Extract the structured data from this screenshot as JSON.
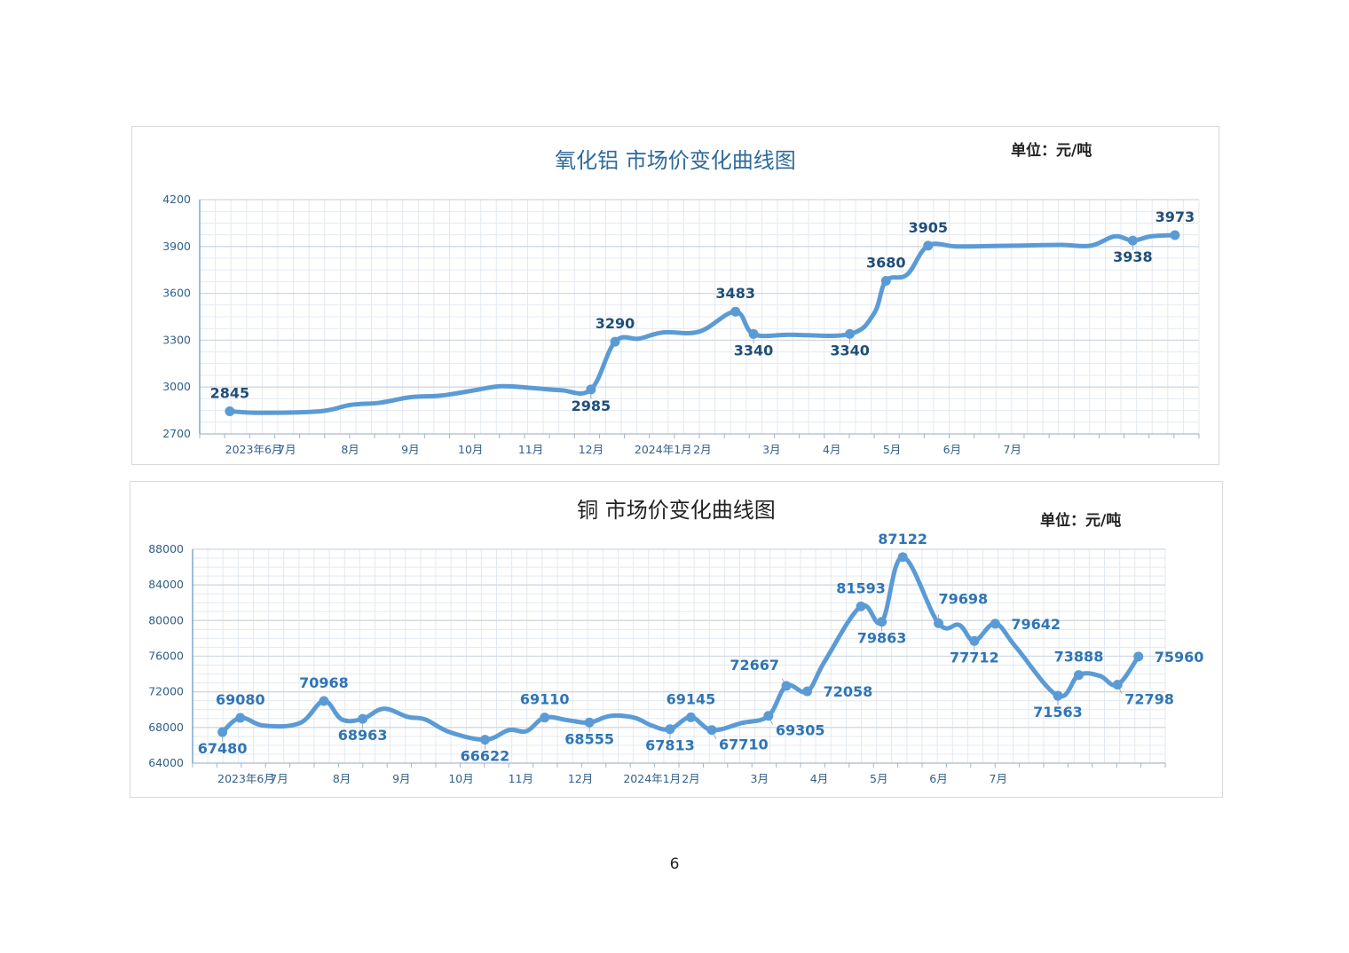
{
  "charts": [
    {
      "title": "氧化铝 市场价变化曲线图",
      "unit": "单位：元/吨",
      "colors": {
        "line": "#5b9bd5",
        "label": "#1f4e79",
        "axis": "#3a7bb8",
        "grid": "#e3e9f0"
      }
    },
    {
      "title": "铜 市场价变化曲线图",
      "unit": "单位：元/吨",
      "colors": {
        "line": "#5b9bd5",
        "label": "#2f75b5",
        "axis": "#3a7bb8",
        "grid": "#e3e9f0"
      }
    }
  ],
  "page_number": "6",
  "chart_data": [
    {
      "type": "line",
      "title": "氧化铝 市场价变化曲线图",
      "unit": "单位：元/吨",
      "ylim": [
        2700,
        4200
      ],
      "yticks": [
        "2700",
        "3000",
        "3300",
        "3600",
        "3900",
        "4200"
      ],
      "xticks": [
        {
          "x": 0.9,
          "label": "2023年6月"
        },
        {
          "x": 1.45,
          "label": "7月"
        },
        {
          "x": 2.5,
          "label": "8月"
        },
        {
          "x": 3.5,
          "label": "9月"
        },
        {
          "x": 4.5,
          "label": "10月"
        },
        {
          "x": 5.5,
          "label": "11月"
        },
        {
          "x": 6.5,
          "label": "12月"
        },
        {
          "x": 7.7,
          "label": "2024年1月"
        },
        {
          "x": 8.35,
          "label": "2月"
        },
        {
          "x": 9.5,
          "label": "3月"
        },
        {
          "x": 10.5,
          "label": "4月"
        },
        {
          "x": 11.5,
          "label": "5月"
        },
        {
          "x": 12.5,
          "label": "6月"
        },
        {
          "x": 13.5,
          "label": "7月"
        }
      ],
      "xrange": [
        0,
        16.6
      ],
      "grid": true,
      "series": [
        {
          "points": [
            [
              0.5,
              2845
            ],
            [
              1.0,
              2835
            ],
            [
              2.0,
              2845
            ],
            [
              2.5,
              2885
            ],
            [
              3.0,
              2900
            ],
            [
              3.5,
              2935
            ],
            [
              4.0,
              2945
            ],
            [
              4.5,
              2975
            ],
            [
              5.0,
              3005
            ],
            [
              5.5,
              2995
            ],
            [
              6.0,
              2980
            ],
            [
              6.5,
              2985
            ],
            [
              6.9,
              3290
            ],
            [
              7.3,
              3310
            ],
            [
              7.7,
              3350
            ],
            [
              8.3,
              3355
            ],
            [
              8.9,
              3483
            ],
            [
              9.2,
              3340
            ],
            [
              9.8,
              3335
            ],
            [
              10.8,
              3340
            ],
            [
              11.2,
              3470
            ],
            [
              11.4,
              3680
            ],
            [
              11.75,
              3720
            ],
            [
              12.1,
              3905
            ],
            [
              12.6,
              3900
            ],
            [
              13.5,
              3905
            ],
            [
              14.3,
              3910
            ],
            [
              14.8,
              3905
            ],
            [
              15.2,
              3965
            ],
            [
              15.5,
              3938
            ],
            [
              15.8,
              3965
            ],
            [
              16.2,
              3973
            ]
          ]
        }
      ],
      "data_labels": [
        {
          "x": 0.5,
          "y": 2845,
          "text": "2845",
          "pos": "above"
        },
        {
          "x": 6.5,
          "y": 2985,
          "text": "2985",
          "pos": "below"
        },
        {
          "x": 6.9,
          "y": 3290,
          "text": "3290",
          "pos": "above"
        },
        {
          "x": 8.9,
          "y": 3483,
          "text": "3483",
          "pos": "above"
        },
        {
          "x": 9.2,
          "y": 3340,
          "text": "3340",
          "pos": "below"
        },
        {
          "x": 10.8,
          "y": 3340,
          "text": "3340",
          "pos": "below"
        },
        {
          "x": 11.4,
          "y": 3680,
          "text": "3680",
          "pos": "above"
        },
        {
          "x": 12.1,
          "y": 3905,
          "text": "3905",
          "pos": "above"
        },
        {
          "x": 15.5,
          "y": 3938,
          "text": "3938",
          "pos": "below"
        },
        {
          "x": 16.2,
          "y": 3973,
          "text": "3973",
          "pos": "above"
        }
      ]
    },
    {
      "type": "line",
      "title": "铜 市场价变化曲线图",
      "unit": "单位：元/吨",
      "ylim": [
        64000,
        88000
      ],
      "yticks": [
        "64000",
        "68000",
        "72000",
        "76000",
        "80000",
        "84000",
        "88000"
      ],
      "xticks": [
        {
          "x": 0.9,
          "label": "2023年6月"
        },
        {
          "x": 1.45,
          "label": "7月"
        },
        {
          "x": 2.5,
          "label": "8月"
        },
        {
          "x": 3.5,
          "label": "9月"
        },
        {
          "x": 4.5,
          "label": "10月"
        },
        {
          "x": 5.5,
          "label": "11月"
        },
        {
          "x": 6.5,
          "label": "12月"
        },
        {
          "x": 7.7,
          "label": "2024年1月"
        },
        {
          "x": 8.35,
          "label": "2月"
        },
        {
          "x": 9.5,
          "label": "3月"
        },
        {
          "x": 10.5,
          "label": "4月"
        },
        {
          "x": 11.5,
          "label": "5月"
        },
        {
          "x": 12.5,
          "label": "6月"
        },
        {
          "x": 13.5,
          "label": "7月"
        }
      ],
      "xrange": [
        0,
        16.3
      ],
      "grid": true,
      "series": [
        {
          "points": [
            [
              0.5,
              67480
            ],
            [
              0.8,
              69080
            ],
            [
              1.2,
              68200
            ],
            [
              1.8,
              68500
            ],
            [
              2.2,
              70968
            ],
            [
              2.5,
              68900
            ],
            [
              2.85,
              68963
            ],
            [
              3.2,
              70100
            ],
            [
              3.6,
              69200
            ],
            [
              3.9,
              68900
            ],
            [
              4.3,
              67500
            ],
            [
              4.9,
              66622
            ],
            [
              5.3,
              67700
            ],
            [
              5.6,
              67600
            ],
            [
              5.9,
              69110
            ],
            [
              6.3,
              68800
            ],
            [
              6.65,
              68555
            ],
            [
              7.0,
              69300
            ],
            [
              7.4,
              69100
            ],
            [
              7.7,
              68200
            ],
            [
              8.0,
              67813
            ],
            [
              8.35,
              69145
            ],
            [
              8.7,
              67710
            ],
            [
              9.2,
              68500
            ],
            [
              9.65,
              69305
            ],
            [
              9.95,
              72667
            ],
            [
              10.3,
              72058
            ],
            [
              10.6,
              75500
            ],
            [
              11.2,
              81593
            ],
            [
              11.55,
              79863
            ],
            [
              11.9,
              87122
            ],
            [
              12.5,
              79698
            ],
            [
              12.85,
              79500
            ],
            [
              13.1,
              77712
            ],
            [
              13.45,
              79642
            ],
            [
              13.8,
              77000
            ],
            [
              14.5,
              71563
            ],
            [
              14.85,
              73888
            ],
            [
              15.2,
              73800
            ],
            [
              15.5,
              72798
            ],
            [
              15.85,
              75960
            ]
          ]
        }
      ],
      "data_labels": [
        {
          "x": 0.5,
          "y": 67480,
          "text": "67480",
          "pos": "below"
        },
        {
          "x": 0.8,
          "y": 69080,
          "text": "69080",
          "pos": "above"
        },
        {
          "x": 2.2,
          "y": 70968,
          "text": "70968",
          "pos": "above"
        },
        {
          "x": 2.85,
          "y": 68963,
          "text": "68963",
          "pos": "below"
        },
        {
          "x": 4.9,
          "y": 66622,
          "text": "66622",
          "pos": "below"
        },
        {
          "x": 5.9,
          "y": 69110,
          "text": "69110",
          "pos": "above"
        },
        {
          "x": 6.65,
          "y": 68555,
          "text": "68555",
          "pos": "below"
        },
        {
          "x": 8.0,
          "y": 67813,
          "text": "67813",
          "pos": "below"
        },
        {
          "x": 8.35,
          "y": 69145,
          "text": "69145",
          "pos": "above"
        },
        {
          "x": 8.7,
          "y": 67710,
          "text": "67710",
          "pos": "below-right"
        },
        {
          "x": 9.65,
          "y": 69305,
          "text": "69305",
          "pos": "below-right"
        },
        {
          "x": 9.95,
          "y": 72667,
          "text": "72667",
          "pos": "above-left"
        },
        {
          "x": 10.3,
          "y": 72058,
          "text": "72058",
          "pos": "right"
        },
        {
          "x": 11.2,
          "y": 81593,
          "text": "81593",
          "pos": "above"
        },
        {
          "x": 11.55,
          "y": 79863,
          "text": "79863",
          "pos": "below"
        },
        {
          "x": 11.9,
          "y": 87122,
          "text": "87122",
          "pos": "above"
        },
        {
          "x": 12.5,
          "y": 79698,
          "text": "79698",
          "pos": "above-right"
        },
        {
          "x": 13.1,
          "y": 77712,
          "text": "77712",
          "pos": "below"
        },
        {
          "x": 13.45,
          "y": 79642,
          "text": "79642",
          "pos": "right"
        },
        {
          "x": 14.5,
          "y": 71563,
          "text": "71563",
          "pos": "below"
        },
        {
          "x": 14.85,
          "y": 73888,
          "text": "73888",
          "pos": "above"
        },
        {
          "x": 15.5,
          "y": 72798,
          "text": "72798",
          "pos": "below-right"
        },
        {
          "x": 15.85,
          "y": 75960,
          "text": "75960",
          "pos": "right"
        }
      ]
    }
  ]
}
